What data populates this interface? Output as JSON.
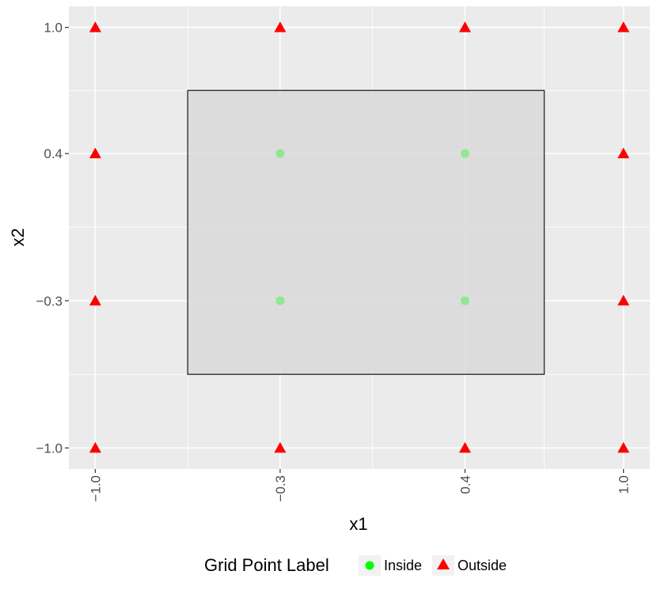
{
  "chart_data": {
    "type": "scatter",
    "title": "",
    "xlabel": "x1",
    "ylabel": "x2",
    "xlim": [
      -1.1,
      1.1
    ],
    "ylim": [
      -1.1,
      1.1
    ],
    "x_ticks": [
      -1.0,
      -0.3,
      0.4,
      1.0
    ],
    "x_tick_labels": [
      "−1.0",
      "−0.3",
      "0.4",
      "1.0"
    ],
    "y_ticks": [
      -1.0,
      -0.3,
      0.4,
      1.0
    ],
    "y_tick_labels": [
      "−1.0",
      "−0.3",
      "0.4",
      "1.0"
    ],
    "grid": true,
    "region": {
      "x_min": -0.65,
      "x_max": 0.7,
      "y_min": -0.65,
      "y_max": 0.7
    },
    "series": [
      {
        "name": "Inside",
        "shape": "circle",
        "color": "#00ff00",
        "points": [
          {
            "x": -0.3,
            "y": 0.4
          },
          {
            "x": 0.4,
            "y": 0.4
          },
          {
            "x": -0.3,
            "y": -0.3
          },
          {
            "x": 0.4,
            "y": -0.3
          }
        ]
      },
      {
        "name": "Outside",
        "shape": "triangle",
        "color": "#ff0000",
        "points": [
          {
            "x": -1.0,
            "y": 1.0
          },
          {
            "x": -0.3,
            "y": 1.0
          },
          {
            "x": 0.4,
            "y": 1.0
          },
          {
            "x": 1.0,
            "y": 1.0
          },
          {
            "x": -1.0,
            "y": 0.4
          },
          {
            "x": 1.0,
            "y": 0.4
          },
          {
            "x": -1.0,
            "y": -0.3
          },
          {
            "x": 1.0,
            "y": -0.3
          },
          {
            "x": -1.0,
            "y": -1.0
          },
          {
            "x": -0.3,
            "y": -1.0
          },
          {
            "x": 0.4,
            "y": -1.0
          },
          {
            "x": 1.0,
            "y": -1.0
          }
        ]
      }
    ],
    "legend": {
      "title": "Grid Point Label",
      "position": "bottom",
      "entries": [
        "Inside",
        "Outside"
      ]
    },
    "colors": {
      "panel_background": "#ebebeb",
      "grid_major": "#ffffff",
      "region_fill": "#d9d9d9",
      "region_stroke": "#333333"
    }
  }
}
